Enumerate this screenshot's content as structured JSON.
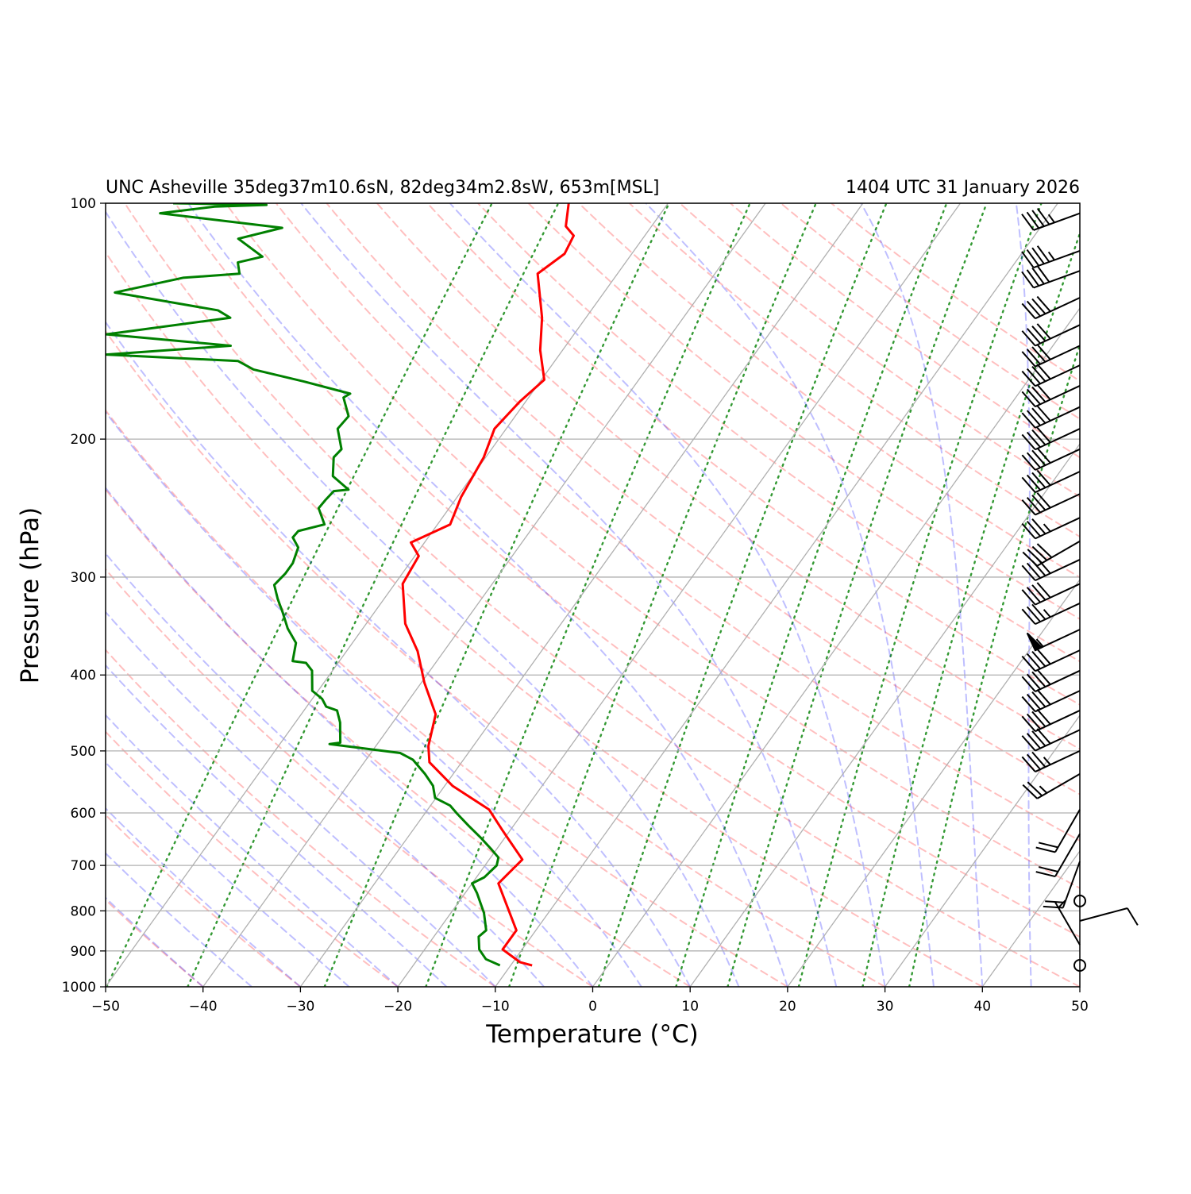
{
  "chart_data": {
    "type": "skewt",
    "title_left": "UNC Asheville 35deg37m10.6sN, 82deg34m2.8sW, 653m[MSL]",
    "title_right": "1404 UTC 31 January 2026",
    "xlabel": "Temperature (°C)",
    "ylabel": "Pressure (hPa)",
    "xlim": [
      -50,
      50
    ],
    "ylim": [
      1000,
      100
    ],
    "yscale": "log",
    "grid": true,
    "xticks": [
      {
        "value": -50,
        "label": "−50"
      },
      {
        "value": -40,
        "label": "−40"
      },
      {
        "value": -30,
        "label": "−30"
      },
      {
        "value": -20,
        "label": "−20"
      },
      {
        "value": -10,
        "label": "−10"
      },
      0,
      10,
      20,
      30,
      40,
      50
    ],
    "yticks": [
      100,
      200,
      300,
      400,
      500,
      600,
      700,
      800,
      900,
      1000
    ],
    "series": [
      {
        "color": "#ff0000",
        "y": [
          939,
          930,
          896,
          847,
          738,
          688,
          630,
          594,
          554,
          517,
          493,
          449,
          409,
          373,
          344,
          306,
          282,
          271,
          257,
          237,
          211,
          194,
          179,
          168,
          154,
          140,
          123,
          116,
          110,
          107,
          100
        ],
        "x": [
          -7.8,
          -9.3,
          -12.0,
          -12.0,
          -17.3,
          -16.6,
          -20.9,
          -23.7,
          -29.2,
          -33.3,
          -34.6,
          -36.2,
          -39.7,
          -42.7,
          -46.0,
          -49.2,
          -49.6,
          -51.4,
          -48.7,
          -49.6,
          -50.2,
          -51.2,
          -50.6,
          -49.7,
          -52.3,
          -54.5,
          -58.2,
          -56.9,
          -57.3,
          -58.8,
          -60.2
        ]
      },
      {
        "color": "#008000",
        "y": [
          939,
          922,
          896,
          863,
          847,
          805,
          759,
          738,
          725,
          700,
          684,
          668,
          645,
          623,
          601,
          587,
          574,
          554,
          535,
          513,
          503,
          490,
          488,
          460,
          444,
          439,
          429,
          419,
          395,
          386,
          384,
          364,
          349,
          332,
          320,
          307,
          297,
          288,
          275,
          267,
          262,
          257,
          245,
          239,
          233,
          232,
          223,
          211,
          206,
          194,
          187,
          177,
          175,
          169,
          163,
          159,
          156,
          152,
          147,
          140,
          137,
          130,
          124.5,
          123,
          119,
          117,
          111,
          107.5,
          103,
          101,
          100.5,
          100
        ],
        "x": [
          -11.1,
          -13.0,
          -14.4,
          -15.4,
          -15.1,
          -16.6,
          -18.8,
          -20.0,
          -19.2,
          -18.8,
          -19.2,
          -20.5,
          -22.5,
          -24.6,
          -26.7,
          -28.0,
          -30.1,
          -31.2,
          -32.9,
          -35.2,
          -37.0,
          -44.9,
          -43.9,
          -45.4,
          -46.6,
          -48.0,
          -49.0,
          -50.6,
          -52.1,
          -53.3,
          -54.8,
          -55.8,
          -57.7,
          -59.5,
          -60.9,
          -62.3,
          -62.0,
          -62.0,
          -62.6,
          -63.9,
          -63.8,
          -61.6,
          -63.4,
          -63.3,
          -63.1,
          -61.7,
          -64.3,
          -65.6,
          -65.4,
          -67.3,
          -67.1,
          -69.0,
          -68.6,
          -74.1,
          -80.3,
          -82.5,
          -96.5,
          -84.4,
          -98.0,
          -86.5,
          -88.3,
          -100.2,
          -94.3,
          -88.8,
          -89.8,
          -87.7,
          -91.5,
          -87.8,
          -101.4,
          -96.3,
          -91.1,
          -100.8
        ]
      }
    ],
    "wind": {
      "pressure": [
        103,
        115,
        122,
        132,
        143,
        152,
        161,
        171,
        182,
        194,
        206,
        220,
        235,
        252,
        270,
        285,
        306,
        324,
        350,
        372,
        395,
        419,
        444,
        470,
        500,
        535,
        594,
        638,
        692,
        777,
        824,
        884,
        939
      ],
      "direction": [
        250,
        250,
        250,
        245,
        245,
        245,
        245,
        245,
        245,
        245,
        245,
        245,
        245,
        245,
        240,
        245,
        245,
        245,
        245,
        245,
        245,
        245,
        245,
        245,
        245,
        240,
        210,
        210,
        200,
        0,
        75,
        330,
        0
      ],
      "speed": [
        45,
        45,
        40,
        40,
        40,
        40,
        40,
        40,
        40,
        40,
        40,
        40,
        40,
        35,
        40,
        40,
        40,
        35,
        55,
        40,
        40,
        40,
        40,
        40,
        35,
        25,
        20,
        20,
        20,
        0,
        10,
        5,
        0
      ]
    },
    "dry_adiabats": {
      "color": "#ff0000",
      "values": [
        -40,
        -30,
        -20,
        -10,
        0,
        10,
        20,
        30,
        40,
        50,
        60,
        70,
        80,
        90,
        100,
        110,
        120,
        130,
        140,
        150,
        160,
        170,
        180,
        190
      ]
    },
    "moist_adiabats": {
      "color": "#0000ff",
      "values": [
        -40,
        -35,
        -30,
        -25,
        -20,
        -15,
        -10,
        -5,
        0,
        5,
        10,
        15,
        20,
        25,
        30,
        35,
        40,
        45
      ]
    },
    "mixing_ratios": {
      "color": "#008000",
      "values": [
        0.04,
        0.1,
        0.4,
        1,
        2,
        4,
        7,
        10,
        16,
        24,
        32
      ]
    }
  }
}
